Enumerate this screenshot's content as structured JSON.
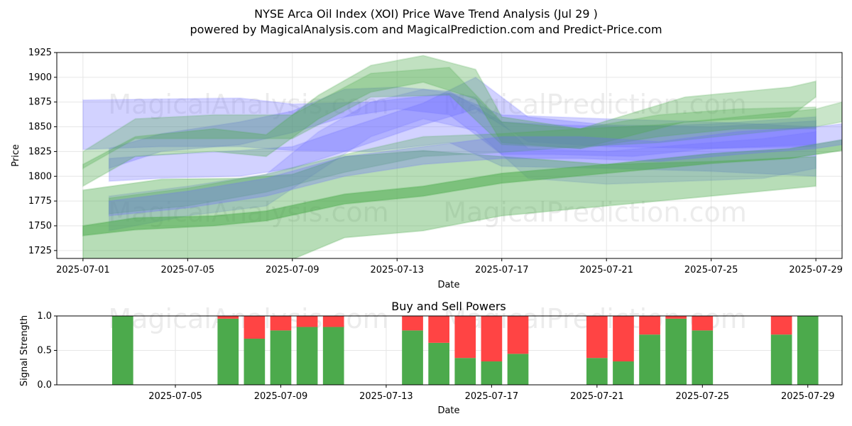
{
  "header": {
    "title": "NYSE Arca Oil Index (XOI) Price Wave Trend Analysis (Jul 29 )",
    "subtitle": "powered by MagicalAnalysis.com and MagicalPrediction.com and Predict-Price.com"
  },
  "watermarks": [
    "MagicalAnalysis.com",
    "MagicalPrediction.com"
  ],
  "colors": {
    "buy": "#4caa4c",
    "sell": "#ff4444",
    "blue_band": "#6a6aff",
    "green_band": "#4caa4c"
  },
  "chart_data": [
    {
      "type": "area",
      "xlabel": "Date",
      "ylabel": "Price",
      "x_range": [
        "2025-06-30",
        "2025-07-30"
      ],
      "ylim": [
        1717,
        1925
      ],
      "y_ticks": [
        1725,
        1750,
        1775,
        1800,
        1825,
        1850,
        1875,
        1900,
        1925
      ],
      "x_ticks": [
        "2025-07-01",
        "2025-07-05",
        "2025-07-09",
        "2025-07-13",
        "2025-07-17",
        "2025-07-21",
        "2025-07-25",
        "2025-07-29"
      ],
      "grid": true,
      "bands": [
        {
          "color": "blue",
          "alpha": 0.3,
          "x": [
            "2025-07-01",
            "2025-07-04",
            "2025-07-07",
            "2025-07-09",
            "2025-07-12",
            "2025-07-15",
            "2025-07-17",
            "2025-07-21",
            "2025-07-25",
            "2025-07-29"
          ],
          "upper": [
            1877,
            1878,
            1879,
            1873,
            1875,
            1884,
            1862,
            1858,
            1855,
            1850
          ],
          "lower": [
            1827,
            1830,
            1830,
            1826,
            1825,
            1834,
            1810,
            1808,
            1805,
            1800
          ]
        },
        {
          "color": "blue",
          "alpha": 0.3,
          "x": [
            "2025-07-02",
            "2025-07-04",
            "2025-07-07",
            "2025-07-09",
            "2025-07-11",
            "2025-07-13",
            "2025-07-15",
            "2025-07-17",
            "2025-07-19",
            "2025-07-22",
            "2025-07-25",
            "2025-07-29"
          ],
          "upper": [
            1828,
            1843,
            1855,
            1866,
            1888,
            1890,
            1886,
            1855,
            1852,
            1850,
            1853,
            1860
          ],
          "lower": [
            1808,
            1825,
            1832,
            1844,
            1860,
            1868,
            1862,
            1822,
            1822,
            1820,
            1828,
            1830
          ]
        },
        {
          "color": "blue",
          "alpha": 0.25,
          "x": [
            "2025-07-02",
            "2025-07-05",
            "2025-07-08",
            "2025-07-10",
            "2025-07-12",
            "2025-07-14",
            "2025-07-16",
            "2025-07-18",
            "2025-07-21",
            "2025-07-24",
            "2025-07-27",
            "2025-07-29"
          ],
          "upper": [
            1780,
            1790,
            1802,
            1845,
            1875,
            1888,
            1880,
            1828,
            1825,
            1832,
            1838,
            1845
          ],
          "lower": [
            1745,
            1760,
            1770,
            1805,
            1840,
            1858,
            1846,
            1798,
            1792,
            1795,
            1798,
            1808
          ]
        },
        {
          "color": "blue",
          "alpha": 0.3,
          "x": [
            "2025-07-02",
            "2025-07-04",
            "2025-07-07",
            "2025-07-09",
            "2025-07-11",
            "2025-07-14",
            "2025-07-16",
            "2025-07-18",
            "2025-07-21",
            "2025-07-25",
            "2025-07-29"
          ],
          "upper": [
            1818,
            1822,
            1826,
            1830,
            1848,
            1874,
            1900,
            1860,
            1852,
            1850,
            1856
          ],
          "lower": [
            1795,
            1798,
            1800,
            1808,
            1825,
            1852,
            1868,
            1835,
            1830,
            1828,
            1832
          ]
        },
        {
          "color": "green",
          "alpha": 0.35,
          "x": [
            "2025-07-01",
            "2025-07-03",
            "2025-07-06",
            "2025-07-08",
            "2025-07-10",
            "2025-07-12",
            "2025-07-14",
            "2025-07-16",
            "2025-07-17",
            "2025-07-20",
            "2025-07-24",
            "2025-07-28",
            "2025-07-29"
          ],
          "upper": [
            1812,
            1840,
            1848,
            1842,
            1882,
            1912,
            1922,
            1908,
            1860,
            1848,
            1880,
            1890,
            1896
          ],
          "lower": [
            1790,
            1820,
            1825,
            1820,
            1858,
            1885,
            1895,
            1878,
            1834,
            1828,
            1855,
            1860,
            1880
          ]
        },
        {
          "color": "green",
          "alpha": 0.3,
          "x": [
            "2025-07-01",
            "2025-07-03",
            "2025-07-06",
            "2025-07-09",
            "2025-07-12",
            "2025-07-15",
            "2025-07-17",
            "2025-07-20",
            "2025-07-23",
            "2025-07-26",
            "2025-07-29"
          ],
          "upper": [
            1825,
            1858,
            1862,
            1862,
            1904,
            1910,
            1855,
            1848,
            1862,
            1868,
            1870
          ],
          "lower": [
            1808,
            1838,
            1838,
            1838,
            1880,
            1882,
            1832,
            1828,
            1840,
            1848,
            1848
          ]
        },
        {
          "color": "green",
          "alpha": 0.4,
          "x": [
            "2025-07-01",
            "2025-07-04",
            "2025-07-07",
            "2025-07-09",
            "2025-07-11",
            "2025-07-14",
            "2025-07-17",
            "2025-07-21",
            "2025-07-25",
            "2025-07-29"
          ],
          "upper": [
            1786,
            1797,
            1798,
            1802,
            1820,
            1826,
            1820,
            1812,
            1815,
            1820
          ],
          "lower": [
            1700,
            1705,
            1706,
            1716,
            1738,
            1745,
            1760,
            1770,
            1780,
            1790
          ]
        },
        {
          "color": "green",
          "alpha": 0.55,
          "x": [
            "2025-07-01",
            "2025-07-03",
            "2025-07-06",
            "2025-07-08",
            "2025-07-11",
            "2025-07-14",
            "2025-07-17",
            "2025-07-21",
            "2025-07-25",
            "2025-07-28",
            "2025-07-30"
          ],
          "upper": [
            1750,
            1758,
            1760,
            1765,
            1782,
            1790,
            1803,
            1812,
            1823,
            1828,
            1837
          ],
          "lower": [
            1740,
            1746,
            1750,
            1755,
            1772,
            1780,
            1793,
            1803,
            1813,
            1818,
            1826
          ]
        },
        {
          "color": "green",
          "alpha": 0.3,
          "x": [
            "2025-07-02",
            "2025-07-05",
            "2025-07-08",
            "2025-07-11",
            "2025-07-14",
            "2025-07-17",
            "2025-07-20",
            "2025-07-23",
            "2025-07-26",
            "2025-07-29",
            "2025-07-30"
          ],
          "upper": [
            1778,
            1788,
            1802,
            1822,
            1840,
            1843,
            1848,
            1852,
            1860,
            1868,
            1875
          ],
          "lower": [
            1762,
            1770,
            1784,
            1804,
            1820,
            1824,
            1830,
            1834,
            1842,
            1850,
            1855
          ]
        },
        {
          "color": "blue",
          "alpha": 0.3,
          "x": [
            "2025-07-02",
            "2025-07-05",
            "2025-07-08",
            "2025-07-11",
            "2025-07-14",
            "2025-07-17",
            "2025-07-20",
            "2025-07-23",
            "2025-07-26",
            "2025-07-29",
            "2025-07-30"
          ],
          "upper": [
            1775,
            1785,
            1798,
            1820,
            1830,
            1840,
            1840,
            1835,
            1845,
            1850,
            1853
          ],
          "lower": [
            1760,
            1768,
            1780,
            1800,
            1812,
            1818,
            1818,
            1815,
            1822,
            1828,
            1832
          ]
        }
      ]
    },
    {
      "type": "bar",
      "title": "Buy and Sell Powers",
      "xlabel": "Date",
      "ylabel": "Signal Strength",
      "ylim": [
        0,
        1.0
      ],
      "y_ticks": [
        "0.0",
        "0.5",
        "1.0"
      ],
      "x_ticks": [
        "2025-07-05",
        "2025-07-09",
        "2025-07-13",
        "2025-07-17",
        "2025-07-21",
        "2025-07-25",
        "2025-07-29"
      ],
      "x_range": [
        "2025-07-01",
        "2025-07-30"
      ],
      "grid": true,
      "categories": [
        "2025-07-03",
        "2025-07-07",
        "2025-07-08",
        "2025-07-09",
        "2025-07-10",
        "2025-07-11",
        "2025-07-14",
        "2025-07-15",
        "2025-07-16",
        "2025-07-17",
        "2025-07-18",
        "2025-07-21",
        "2025-07-22",
        "2025-07-23",
        "2025-07-24",
        "2025-07-25",
        "2025-07-28",
        "2025-07-29"
      ],
      "series": [
        {
          "name": "buy",
          "values": [
            1.0,
            0.96,
            0.67,
            0.79,
            0.84,
            0.84,
            0.79,
            0.61,
            0.39,
            0.34,
            0.45,
            0.39,
            0.34,
            0.73,
            0.96,
            0.79,
            0.73,
            1.0
          ]
        },
        {
          "name": "sell",
          "values": [
            0.0,
            0.04,
            0.33,
            0.21,
            0.16,
            0.16,
            0.21,
            0.39,
            0.61,
            0.66,
            0.55,
            0.61,
            0.66,
            0.27,
            0.04,
            0.21,
            0.27,
            0.0
          ]
        }
      ]
    }
  ]
}
